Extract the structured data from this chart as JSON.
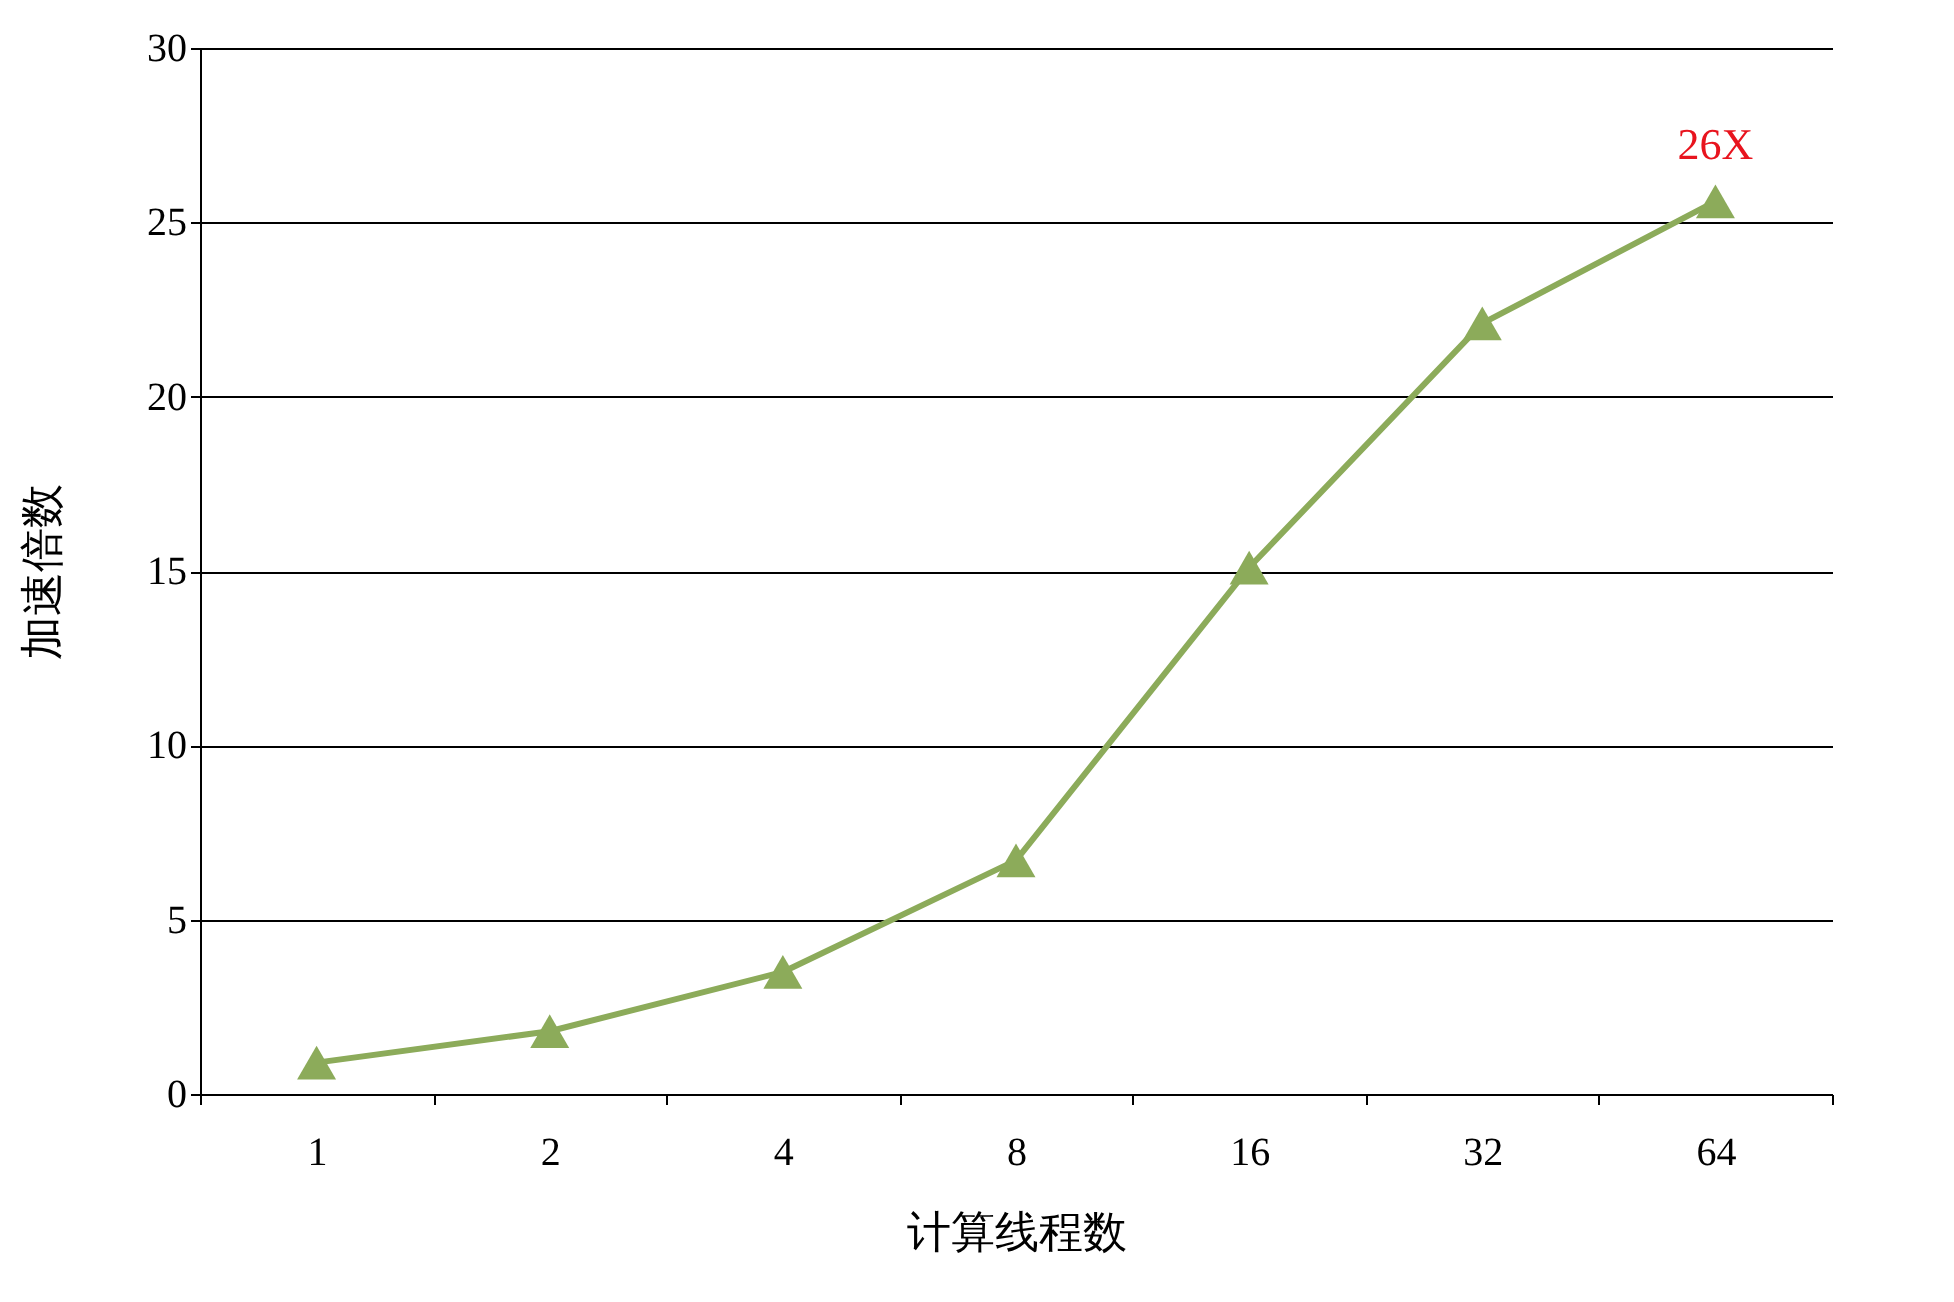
{
  "chart_data": {
    "type": "line",
    "xlabel": "计算线程数",
    "ylabel": "加速倍数",
    "categories": [
      "1",
      "2",
      "4",
      "8",
      "16",
      "32",
      "64"
    ],
    "series": [
      {
        "color": "#8cab5a",
        "values": [
          0.9,
          1.8,
          3.5,
          6.7,
          15.1,
          22.1,
          25.6
        ]
      }
    ],
    "ylim": [
      0,
      30
    ],
    "yticks": [
      0,
      5,
      10,
      15,
      20,
      25,
      30
    ],
    "grid": "y",
    "marker": "triangle",
    "legend": false,
    "annotations": [
      {
        "text": "26X",
        "x": "64",
        "y": 25.6
      }
    ]
  }
}
